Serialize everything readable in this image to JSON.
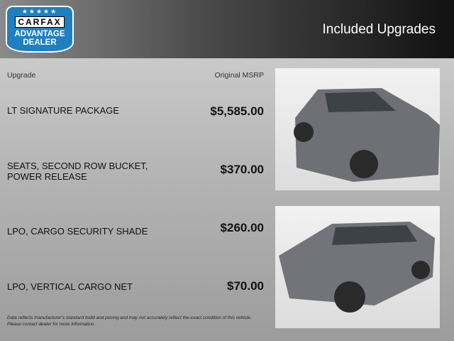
{
  "header": {
    "logo_text": {
      "brand": "CARFAX",
      "line1": "ADVANTAGE",
      "line2": "DEALER"
    },
    "title": "Included Upgrades"
  },
  "columns": {
    "upgrade": "Upgrade",
    "msrp": "Original MSRP"
  },
  "upgrades": [
    {
      "name": "LT SIGNATURE PACKAGE",
      "price": "$5,585.00"
    },
    {
      "name": "SEATS, SECOND ROW BUCKET, POWER RELEASE",
      "price": "$370.00"
    },
    {
      "name": "LPO, CARGO SECURITY SHADE",
      "price": "$260.00"
    },
    {
      "name": "LPO, VERTICAL CARGO NET",
      "price": "$70.00"
    }
  ],
  "disclaimer": "Data reflects manufacturer's standard build and pricing and may not accurately reflect the exact condition of this vehicle. Please contact dealer for more information."
}
